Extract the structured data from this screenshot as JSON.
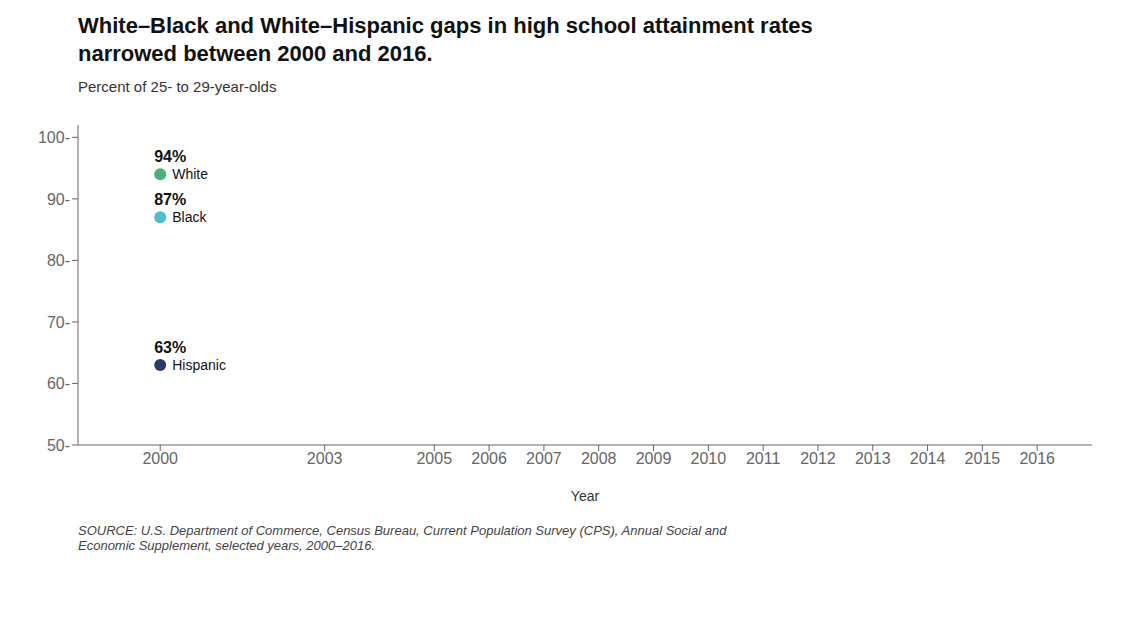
{
  "chart_data": {
    "type": "scatter",
    "title": "White–Black and White–Hispanic gaps in high school attainment rates\nnarrowed between 2000 and 2016.",
    "y_label": "Percent of 25- to 29-year-olds",
    "x_label": "Year",
    "xlim": [
      1998.5,
      2017
    ],
    "xticks": [
      2000,
      2003,
      2005,
      2006,
      2007,
      2008,
      2009,
      2010,
      2011,
      2012,
      2013,
      2014,
      2015,
      2016
    ],
    "ylim": [
      50,
      102
    ],
    "yticks": [
      {
        "value": 50,
        "label": "50-"
      },
      {
        "value": 60,
        "label": "60-"
      },
      {
        "value": 70,
        "label": "70-"
      },
      {
        "value": 80,
        "label": "80-"
      },
      {
        "value": 90,
        "label": "90-"
      },
      {
        "value": 100,
        "label": "100-"
      }
    ],
    "grid": false,
    "data_labels": true,
    "series": [
      {
        "name": "White",
        "color": "#4caf7d",
        "x": [
          2000
        ],
        "values": [
          94
        ],
        "value_labels": [
          "94%"
        ]
      },
      {
        "name": "Black",
        "color": "#4bbfce",
        "x": [
          2000
        ],
        "values": [
          87
        ],
        "value_labels": [
          "87%"
        ]
      },
      {
        "name": "Hispanic",
        "color": "#2b3a6b",
        "x": [
          2000
        ],
        "values": [
          63
        ],
        "value_labels": [
          "63%"
        ]
      }
    ],
    "source": "SOURCE: U.S. Department of Commerce, Census Bureau, Current Population Survey (CPS), Annual Social and\nEconomic Supplement, selected years, 2000–2016."
  }
}
